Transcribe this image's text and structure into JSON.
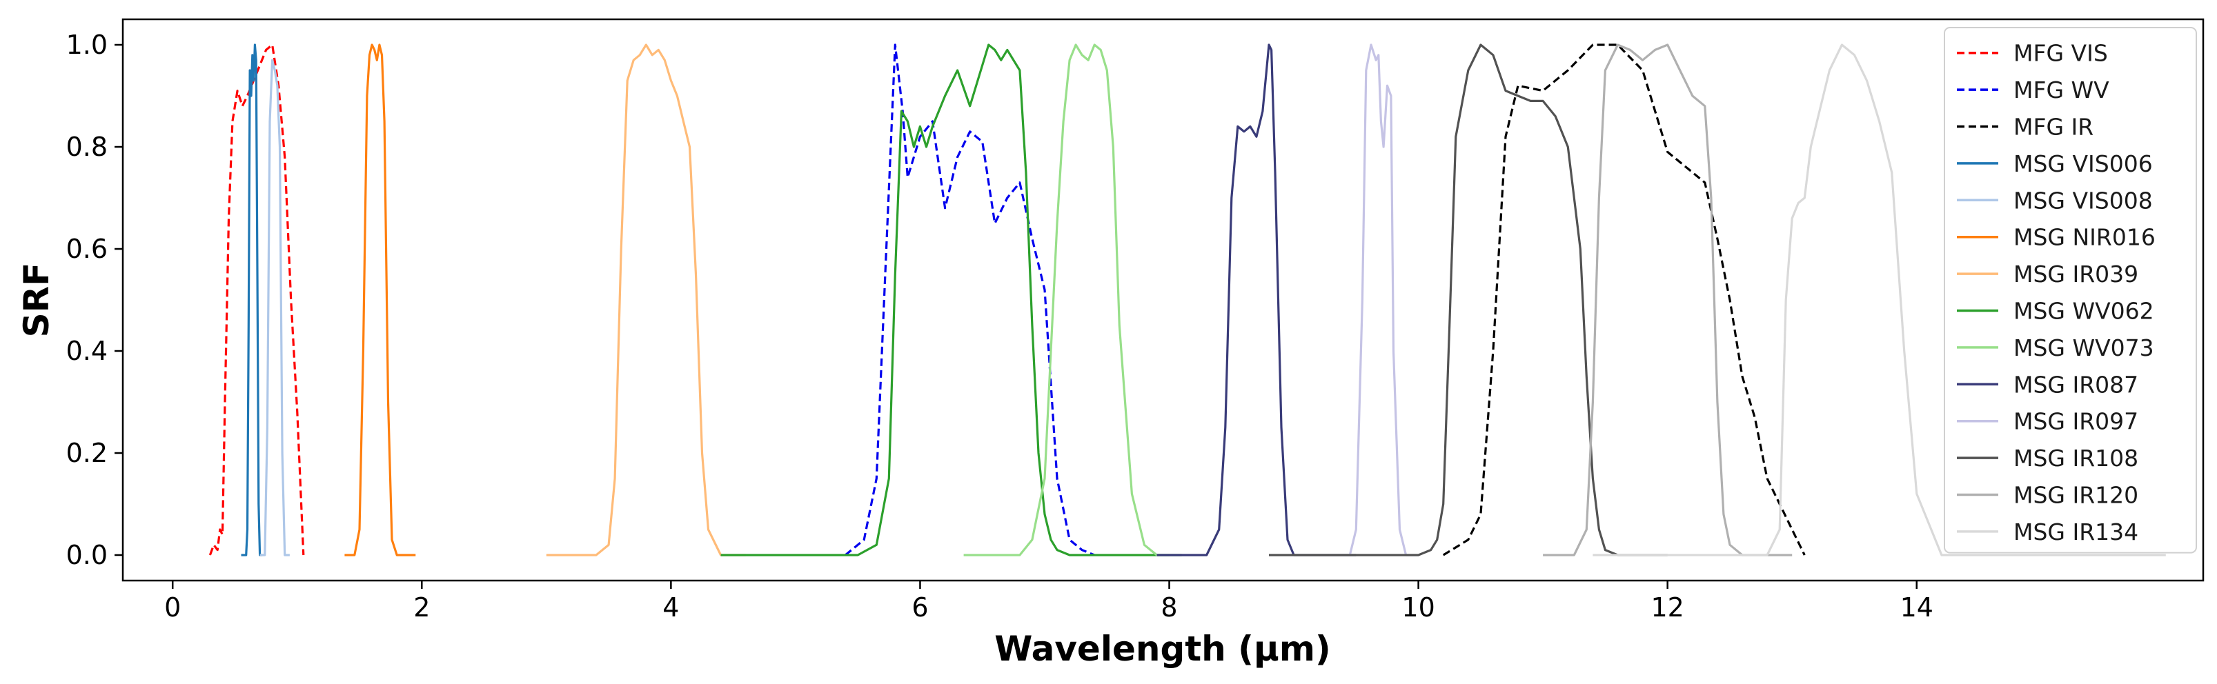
{
  "chart_data": {
    "type": "line",
    "title": "",
    "xlabel": "Wavelength (µm)",
    "ylabel": "SRF",
    "xlim": [
      -0.4,
      16.3
    ],
    "ylim": [
      -0.05,
      1.05
    ],
    "xticks": [
      0,
      2,
      4,
      6,
      8,
      10,
      12,
      14
    ],
    "yticks": [
      0.0,
      0.2,
      0.4,
      0.6,
      0.8,
      1.0
    ],
    "xtick_labels": [
      "0",
      "2",
      "4",
      "6",
      "8",
      "10",
      "12",
      "14"
    ],
    "ytick_labels": [
      "0.0",
      "0.2",
      "0.4",
      "0.6",
      "0.8",
      "1.0"
    ],
    "grid": false,
    "legend_position": "top-right",
    "series": [
      {
        "name": "MFG VIS",
        "color": "#ff0000",
        "dash": true,
        "x": [
          0.3,
          0.33,
          0.36,
          0.38,
          0.4,
          0.42,
          0.45,
          0.48,
          0.52,
          0.56,
          0.6,
          0.65,
          0.7,
          0.75,
          0.8,
          0.85,
          0.9,
          0.95,
          1.0,
          1.05
        ],
        "y": [
          0.0,
          0.02,
          0.01,
          0.05,
          0.04,
          0.3,
          0.66,
          0.85,
          0.91,
          0.88,
          0.9,
          0.93,
          0.96,
          0.99,
          1.0,
          0.92,
          0.78,
          0.5,
          0.28,
          0.0
        ]
      },
      {
        "name": "MFG WV",
        "color": "#0000ee",
        "dash": true,
        "x": [
          5.4,
          5.55,
          5.65,
          5.72,
          5.8,
          5.86,
          5.9,
          6.0,
          6.1,
          6.2,
          6.3,
          6.4,
          6.5,
          6.6,
          6.7,
          6.8,
          6.9,
          7.0,
          7.1,
          7.2,
          7.3,
          7.4
        ],
        "y": [
          0.0,
          0.03,
          0.15,
          0.55,
          1.0,
          0.87,
          0.74,
          0.82,
          0.85,
          0.68,
          0.78,
          0.83,
          0.81,
          0.65,
          0.7,
          0.73,
          0.62,
          0.52,
          0.15,
          0.03,
          0.01,
          0.0
        ]
      },
      {
        "name": "MFG IR",
        "color": "#000000",
        "dash": true,
        "x": [
          10.2,
          10.4,
          10.5,
          10.6,
          10.7,
          10.8,
          11.0,
          11.2,
          11.4,
          11.6,
          11.8,
          12.0,
          12.2,
          12.3,
          12.4,
          12.5,
          12.6,
          12.7,
          12.8,
          12.9,
          13.0,
          13.1
        ],
        "y": [
          0.0,
          0.03,
          0.08,
          0.4,
          0.82,
          0.92,
          0.91,
          0.95,
          1.0,
          1.0,
          0.95,
          0.79,
          0.75,
          0.73,
          0.62,
          0.5,
          0.35,
          0.27,
          0.15,
          0.1,
          0.05,
          0.0
        ]
      },
      {
        "name": "MSG VIS006",
        "color": "#1f77b4",
        "dash": false,
        "x": [
          0.55,
          0.59,
          0.6,
          0.61,
          0.62,
          0.63,
          0.64,
          0.65,
          0.66,
          0.67,
          0.68,
          0.69,
          0.7,
          0.72
        ],
        "y": [
          0.0,
          0.0,
          0.05,
          0.45,
          0.95,
          0.9,
          0.98,
          0.93,
          1.0,
          0.97,
          0.55,
          0.1,
          0.0,
          0.0
        ]
      },
      {
        "name": "MSG VIS008",
        "color": "#aec7e8",
        "dash": false,
        "x": [
          0.7,
          0.74,
          0.76,
          0.78,
          0.8,
          0.82,
          0.84,
          0.86,
          0.88,
          0.9,
          0.94
        ],
        "y": [
          0.0,
          0.0,
          0.25,
          0.85,
          0.97,
          0.95,
          0.92,
          0.8,
          0.2,
          0.0,
          0.0
        ]
      },
      {
        "name": "MSG NIR016",
        "color": "#ff7f0e",
        "dash": false,
        "x": [
          1.38,
          1.46,
          1.5,
          1.53,
          1.56,
          1.58,
          1.6,
          1.62,
          1.64,
          1.66,
          1.68,
          1.7,
          1.73,
          1.76,
          1.8,
          1.95
        ],
        "y": [
          0.0,
          0.0,
          0.05,
          0.4,
          0.9,
          0.98,
          1.0,
          0.99,
          0.97,
          1.0,
          0.98,
          0.85,
          0.3,
          0.03,
          0.0,
          0.0
        ]
      },
      {
        "name": "MSG IR039",
        "color": "#ffbb78",
        "dash": false,
        "x": [
          3.0,
          3.4,
          3.5,
          3.55,
          3.6,
          3.65,
          3.7,
          3.75,
          3.8,
          3.85,
          3.9,
          3.95,
          4.0,
          4.05,
          4.1,
          4.15,
          4.2,
          4.25,
          4.3,
          4.4,
          4.6
        ],
        "y": [
          0.0,
          0.0,
          0.02,
          0.15,
          0.6,
          0.93,
          0.97,
          0.98,
          1.0,
          0.98,
          0.99,
          0.97,
          0.93,
          0.9,
          0.85,
          0.8,
          0.55,
          0.2,
          0.05,
          0.0,
          0.0
        ]
      },
      {
        "name": "MSG WV062",
        "color": "#2ca02c",
        "dash": false,
        "x": [
          4.4,
          5.2,
          5.5,
          5.65,
          5.75,
          5.8,
          5.85,
          5.9,
          5.95,
          6.0,
          6.05,
          6.1,
          6.2,
          6.3,
          6.4,
          6.45,
          6.55,
          6.6,
          6.65,
          6.7,
          6.8,
          6.85,
          6.9,
          6.95,
          7.0,
          7.05,
          7.1,
          7.2,
          8.1
        ],
        "y": [
          0.0,
          0.0,
          0.0,
          0.02,
          0.15,
          0.55,
          0.87,
          0.85,
          0.8,
          0.84,
          0.8,
          0.84,
          0.9,
          0.95,
          0.88,
          0.92,
          1.0,
          0.99,
          0.97,
          0.99,
          0.95,
          0.75,
          0.45,
          0.2,
          0.08,
          0.03,
          0.01,
          0.0,
          0.0
        ]
      },
      {
        "name": "MSG WV073",
        "color": "#98df8a",
        "dash": false,
        "x": [
          6.35,
          6.8,
          6.9,
          7.0,
          7.1,
          7.15,
          7.2,
          7.25,
          7.3,
          7.35,
          7.4,
          7.45,
          7.5,
          7.55,
          7.6,
          7.7,
          7.8,
          7.9,
          8.0
        ],
        "y": [
          0.0,
          0.0,
          0.03,
          0.15,
          0.65,
          0.85,
          0.97,
          1.0,
          0.98,
          0.97,
          1.0,
          0.99,
          0.95,
          0.8,
          0.45,
          0.12,
          0.02,
          0.0,
          0.0
        ]
      },
      {
        "name": "MSG IR087",
        "color": "#393b79",
        "dash": false,
        "x": [
          7.9,
          8.3,
          8.4,
          8.45,
          8.5,
          8.55,
          8.6,
          8.65,
          8.7,
          8.75,
          8.8,
          8.82,
          8.85,
          8.9,
          8.95,
          9.0,
          9.1,
          9.5
        ],
        "y": [
          0.0,
          0.0,
          0.05,
          0.25,
          0.7,
          0.84,
          0.83,
          0.84,
          0.82,
          0.87,
          1.0,
          0.99,
          0.75,
          0.25,
          0.03,
          0.0,
          0.0,
          0.0
        ]
      },
      {
        "name": "MSG IR097",
        "color": "#c5c3e5",
        "dash": false,
        "x": [
          9.2,
          9.45,
          9.5,
          9.55,
          9.58,
          9.62,
          9.66,
          9.68,
          9.7,
          9.72,
          9.75,
          9.78,
          9.8,
          9.85,
          9.9,
          10.0
        ],
        "y": [
          0.0,
          0.0,
          0.05,
          0.5,
          0.95,
          1.0,
          0.97,
          0.98,
          0.85,
          0.8,
          0.92,
          0.9,
          0.4,
          0.05,
          0.0,
          0.0
        ]
      },
      {
        "name": "MSG IR108",
        "color": "#525252",
        "dash": false,
        "x": [
          8.8,
          10.0,
          10.1,
          10.15,
          10.2,
          10.25,
          10.3,
          10.4,
          10.5,
          10.6,
          10.7,
          10.8,
          10.9,
          11.0,
          11.1,
          11.2,
          11.3,
          11.35,
          11.4,
          11.45,
          11.5,
          11.6,
          12.0
        ],
        "y": [
          0.0,
          0.0,
          0.01,
          0.03,
          0.1,
          0.45,
          0.82,
          0.95,
          1.0,
          0.98,
          0.91,
          0.9,
          0.89,
          0.89,
          0.86,
          0.8,
          0.6,
          0.35,
          0.15,
          0.05,
          0.01,
          0.0,
          0.0
        ]
      },
      {
        "name": "MSG IR120",
        "color": "#b0b0b0",
        "dash": false,
        "x": [
          11.0,
          11.25,
          11.35,
          11.4,
          11.45,
          11.5,
          11.6,
          11.7,
          11.8,
          11.9,
          12.0,
          12.1,
          12.2,
          12.3,
          12.35,
          12.4,
          12.45,
          12.5,
          12.6,
          12.7,
          13.0
        ],
        "y": [
          0.0,
          0.0,
          0.05,
          0.3,
          0.7,
          0.95,
          1.0,
          0.99,
          0.97,
          0.99,
          1.0,
          0.95,
          0.9,
          0.88,
          0.7,
          0.3,
          0.08,
          0.02,
          0.0,
          0.0,
          0.0
        ]
      },
      {
        "name": "MSG IR134",
        "color": "#d9d9d9",
        "dash": false,
        "x": [
          11.4,
          12.8,
          12.9,
          12.95,
          13.0,
          13.05,
          13.1,
          13.15,
          13.2,
          13.3,
          13.4,
          13.5,
          13.6,
          13.7,
          13.8,
          13.9,
          14.0,
          14.2,
          16.0
        ],
        "y": [
          0.0,
          0.0,
          0.05,
          0.5,
          0.66,
          0.69,
          0.7,
          0.8,
          0.85,
          0.95,
          1.0,
          0.98,
          0.93,
          0.85,
          0.75,
          0.4,
          0.12,
          0.0,
          0.0
        ]
      }
    ]
  }
}
